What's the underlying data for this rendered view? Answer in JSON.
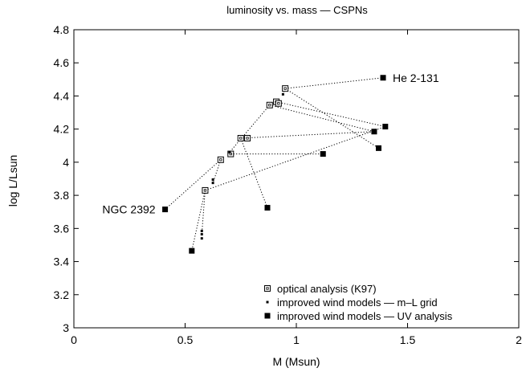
{
  "chart_data": {
    "type": "scatter",
    "title": "luminosity vs. mass  —  CSPNs",
    "xlabel": "M (Msun)",
    "ylabel": "log L/Lsun",
    "xlim": [
      0,
      2
    ],
    "ylim": [
      3,
      4.8
    ],
    "x_ticks": [
      "0",
      "0.5",
      "1",
      "1.5",
      "2"
    ],
    "y_ticks": [
      "3",
      "3.2",
      "3.4",
      "3.6",
      "3.8",
      "4",
      "4.2",
      "4.4",
      "4.6",
      "4.8"
    ],
    "grid": false,
    "legend_position": "bottom-right",
    "series": [
      {
        "name": "optical analysis (K97)",
        "marker": "open-square",
        "points": [
          {
            "x": 0.95,
            "y": 4.445
          },
          {
            "x": 0.91,
            "y": 4.365
          },
          {
            "x": 0.92,
            "y": 4.355
          },
          {
            "x": 0.88,
            "y": 4.345
          },
          {
            "x": 0.75,
            "y": 4.145
          },
          {
            "x": 0.78,
            "y": 4.145
          },
          {
            "x": 0.705,
            "y": 4.05
          },
          {
            "x": 0.66,
            "y": 4.015
          },
          {
            "x": 0.59,
            "y": 3.83
          }
        ]
      },
      {
        "name": "improved wind models — m–L grid",
        "marker": "small-dot",
        "points": [
          {
            "x": 0.94,
            "y": 4.41
          },
          {
            "x": 0.7,
            "y": 4.06
          },
          {
            "x": 0.625,
            "y": 3.895
          },
          {
            "x": 0.625,
            "y": 3.875
          },
          {
            "x": 0.575,
            "y": 3.585
          },
          {
            "x": 0.575,
            "y": 3.565
          },
          {
            "x": 0.575,
            "y": 3.54
          }
        ]
      },
      {
        "name": "improved wind models — UV analysis",
        "marker": "filled-square",
        "points": [
          {
            "x": 1.39,
            "y": 4.51
          },
          {
            "x": 1.4,
            "y": 4.215
          },
          {
            "x": 1.35,
            "y": 4.185
          },
          {
            "x": 1.37,
            "y": 4.085
          },
          {
            "x": 1.12,
            "y": 4.05
          },
          {
            "x": 0.87,
            "y": 3.725
          },
          {
            "x": 0.41,
            "y": 3.715
          },
          {
            "x": 0.53,
            "y": 3.465
          }
        ]
      }
    ],
    "connections": [
      [
        [
          0.95,
          4.445
        ],
        [
          1.39,
          4.51
        ]
      ],
      [
        [
          0.95,
          4.445
        ],
        [
          0.94,
          4.41
        ]
      ],
      [
        [
          0.95,
          4.445
        ],
        [
          1.37,
          4.085
        ]
      ],
      [
        [
          0.91,
          4.365
        ],
        [
          1.4,
          4.215
        ]
      ],
      [
        [
          0.88,
          4.345
        ],
        [
          0.7,
          4.06
        ]
      ],
      [
        [
          0.88,
          4.345
        ],
        [
          1.35,
          4.185
        ]
      ],
      [
        [
          0.75,
          4.145
        ],
        [
          0.87,
          3.725
        ]
      ],
      [
        [
          0.75,
          4.145
        ],
        [
          1.35,
          4.185
        ]
      ],
      [
        [
          0.705,
          4.05
        ],
        [
          1.12,
          4.05
        ]
      ],
      [
        [
          0.59,
          3.83
        ],
        [
          1.4,
          4.215
        ]
      ],
      [
        [
          0.66,
          4.015
        ],
        [
          0.625,
          3.875
        ]
      ],
      [
        [
          0.66,
          4.015
        ],
        [
          0.41,
          3.715
        ]
      ],
      [
        [
          0.59,
          3.83
        ],
        [
          0.575,
          3.565
        ]
      ],
      [
        [
          0.59,
          3.83
        ],
        [
          0.53,
          3.465
        ]
      ]
    ],
    "annotations": [
      {
        "text": "He 2-131",
        "x": 1.39,
        "y": 4.51,
        "anchor": "right"
      },
      {
        "text": "NGC 2392",
        "x": 0.41,
        "y": 3.715,
        "anchor": "left"
      }
    ]
  }
}
